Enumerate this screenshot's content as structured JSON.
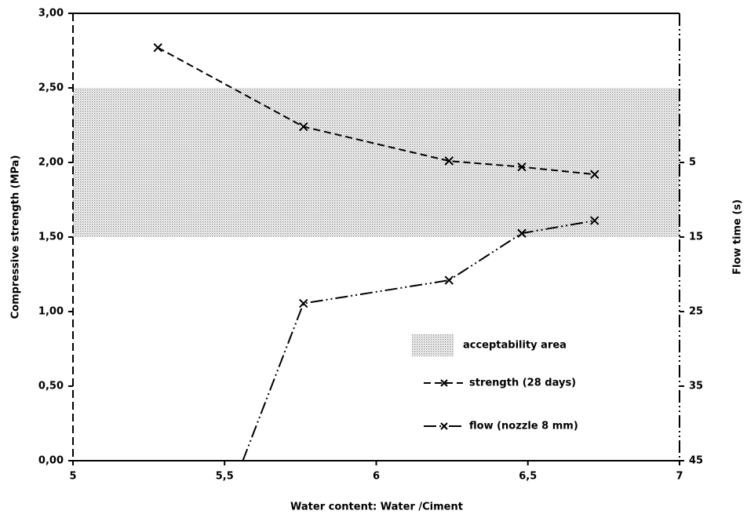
{
  "chart_data": {
    "type": "line",
    "x_label": "Water content: Water /Ciment",
    "y_label": "Compressive strength (MPa)",
    "y2_label": "Flow time (s)",
    "xlim": [
      5,
      7
    ],
    "xticks": [
      5,
      {
        "value": 5.5,
        "label": "5,5"
      },
      6,
      {
        "value": 6.5,
        "label": "6,5"
      },
      7
    ],
    "ylim": [
      0,
      3
    ],
    "yticks": [
      {
        "value": 0,
        "label": "0,00"
      },
      {
        "value": 0.5,
        "label": "0,50"
      },
      {
        "value": 1,
        "label": "1,00"
      },
      {
        "value": 1.5,
        "label": "1,50"
      },
      {
        "value": 2,
        "label": "2,00"
      },
      {
        "value": 2.5,
        "label": "2,50"
      },
      {
        "value": 3,
        "label": "3,00"
      }
    ],
    "y2lim": [
      45,
      -15
    ],
    "y2ticks": [
      5,
      15,
      25,
      35,
      45
    ],
    "bands": [
      {
        "name": "acceptability area",
        "from": 1.5,
        "to": 2.5,
        "color": "#999999"
      }
    ],
    "series": [
      {
        "name": "strength (28 days)",
        "color": "#000000",
        "x": [
          5.28,
          5.76,
          6.24,
          6.48,
          6.72
        ],
        "values": [
          2.77,
          2.24,
          2.01,
          1.97,
          1.92
        ]
      },
      {
        "name": "flow (nozzle 8 mm)",
        "color": "#000000",
        "axis": "y2",
        "x": [
          5.56,
          5.76,
          6.24,
          6.48,
          6.72
        ],
        "values": [
          45,
          23.9,
          20.8,
          14.5,
          12.8
        ]
      }
    ]
  }
}
